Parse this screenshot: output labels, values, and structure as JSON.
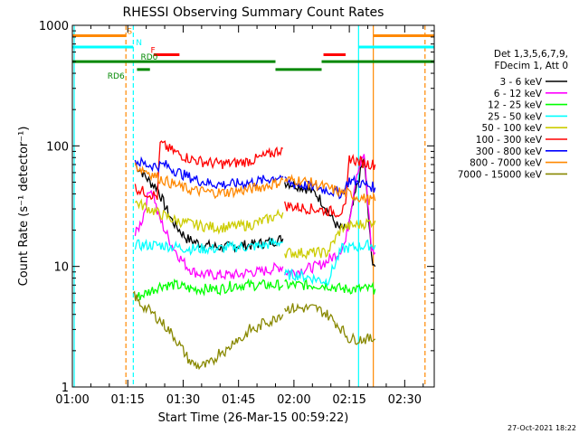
{
  "chart_data": {
    "type": "line",
    "title": "RHESSI Observing Summary Count Rates",
    "xlabel": "Start Time (26-Mar-15 00:59:22)",
    "ylabel": "Count Rate (s⁻¹ detector⁻¹)",
    "footer": "27-Oct-2021 18:22",
    "y_scale": "log",
    "ylim": [
      1,
      1000
    ],
    "xlim": [
      0,
      98
    ],
    "x_unit": "minutes after 01:00",
    "x_ticks": [
      {
        "value": 0,
        "label": "01:00"
      },
      {
        "value": 15,
        "label": "01:15"
      },
      {
        "value": 30,
        "label": "01:30"
      },
      {
        "value": 45,
        "label": "01:45"
      },
      {
        "value": 60,
        "label": "02:00"
      },
      {
        "value": 75,
        "label": "02:15"
      },
      {
        "value": 90,
        "label": "02:30"
      }
    ],
    "y_ticks": [
      {
        "value": 1,
        "label": "1"
      },
      {
        "value": 10,
        "label": "10"
      },
      {
        "value": 100,
        "label": "100"
      },
      {
        "value": 1000,
        "label": "1000"
      }
    ],
    "legend_header": [
      "Det 1,3,5,6,7,9,",
      "FDecim 1, Att 0"
    ],
    "legend_placement": "right",
    "series": [
      {
        "name": "3 - 6 keV",
        "color": "#000000",
        "segments": [
          {
            "x": [
              17,
              19,
              21,
              23,
              25,
              27,
              29,
              31,
              33,
              36,
              39,
              42,
              45,
              48,
              51,
              54,
              57
            ],
            "y": [
              70,
              60,
              50,
              45,
              32,
              24,
              20,
              17,
              16,
              15,
              14.5,
              14.5,
              15,
              15,
              15.5,
              16,
              17
            ]
          },
          {
            "x": [
              57.5,
              60,
              63,
              66,
              68,
              70,
              72,
              74,
              75,
              77,
              79,
              81,
              82
            ],
            "y": [
              50,
              48,
              45,
              40,
              33,
              26,
              21,
              20,
              23,
              45,
              80,
              12,
              10
            ]
          }
        ]
      },
      {
        "name": "6 - 12 keV",
        "color": "#ff00ff",
        "segments": [
          {
            "x": [
              17,
              19,
              21,
              22,
              23,
              25,
              27,
              29,
              31,
              33,
              36,
              39,
              42,
              45,
              48,
              51,
              54,
              57
            ],
            "y": [
              18,
              25,
              45,
              40,
              28,
              20,
              15,
              12,
              10,
              9,
              8.5,
              8.5,
              8.5,
              8.5,
              9,
              9,
              9.5,
              10
            ]
          },
          {
            "x": [
              57.5,
              60,
              63,
              66,
              69,
              72,
              74,
              75,
              77,
              79,
              81,
              82
            ],
            "y": [
              9,
              9,
              9.5,
              10,
              11,
              13,
              16,
              25,
              60,
              85,
              14,
              13
            ]
          }
        ]
      },
      {
        "name": "12 - 25 keV",
        "color": "#00ff00",
        "segments": [
          {
            "x": [
              17,
              20,
              24,
              28,
              32,
              36,
              40,
              44,
              48,
              52,
              56,
              57
            ],
            "y": [
              5.5,
              6,
              7,
              7,
              6.5,
              6.5,
              6.5,
              7,
              7,
              7,
              7,
              7
            ]
          },
          {
            "x": [
              57.5,
              61,
              65,
              69,
              73,
              77,
              80,
              82
            ],
            "y": [
              7,
              7,
              7,
              7,
              6.5,
              6.5,
              6.5,
              6.5
            ]
          }
        ]
      },
      {
        "name": "25 - 50 keV",
        "color": "#00ffff",
        "segments": [
          {
            "x": [
              17,
              20,
              24,
              28,
              32,
              36,
              40,
              44,
              48,
              52,
              56,
              57
            ],
            "y": [
              15,
              15,
              15,
              14.5,
              14,
              14,
              14,
              14.5,
              14.5,
              15,
              16,
              16
            ]
          },
          {
            "x": [
              57.5,
              61,
              65,
              69,
              73,
              77,
              80,
              82
            ],
            "y": [
              8.5,
              8.5,
              8,
              7.5,
              14,
              14.5,
              15,
              15
            ]
          }
        ]
      },
      {
        "name": "50 - 100 keV",
        "color": "#cccc00",
        "segments": [
          {
            "x": [
              17,
              20,
              24,
              28,
              32,
              36,
              40,
              44,
              48,
              52,
              56,
              57
            ],
            "y": [
              34,
              31,
              27,
              24,
              22.5,
              21.5,
              21,
              21.5,
              22,
              24,
              27,
              28
            ]
          },
          {
            "x": [
              57.5,
              61,
              65,
              69,
              73,
              77,
              80,
              82
            ],
            "y": [
              13,
              13,
              13,
              13,
              21,
              22,
              23,
              24
            ]
          }
        ]
      },
      {
        "name": "100 - 300 keV",
        "color": "#ff0000",
        "segments": [
          {
            "x": [
              17,
              19,
              21,
              23,
              23.8,
              26,
              29,
              32,
              35,
              38,
              41,
              44,
              47,
              50,
              53,
              56,
              57
            ],
            "y": [
              45,
              42,
              40,
              38,
              105,
              95,
              85,
              78,
              74,
              72,
              71,
              72,
              74,
              78,
              84,
              92,
              95
            ]
          },
          {
            "x": [
              57.5,
              61,
              65,
              69,
              72,
              74,
              75,
              77,
              79,
              82
            ],
            "y": [
              32,
              31,
              30,
              29,
              28,
              30,
              80,
              75,
              72,
              70
            ]
          }
        ]
      },
      {
        "name": "300 - 800 keV",
        "color": "#0000ff",
        "segments": [
          {
            "x": [
              17,
              20,
              23,
              25,
              28,
              31,
              34,
              37,
              40,
              43,
              46,
              49,
              52,
              55,
              57
            ],
            "y": [
              75,
              70,
              68,
              70,
              62,
              56,
              52,
              49,
              48,
              48,
              49,
              50,
              52,
              55,
              56
            ]
          },
          {
            "x": [
              57.5,
              61,
              65,
              69,
              73,
              75,
              77,
              80,
              82
            ],
            "y": [
              50,
              48,
              46,
              43,
              40,
              52,
              50,
              47,
              45
            ]
          }
        ]
      },
      {
        "name": "800 - 7000 keV",
        "color": "#ff8800",
        "segments": [
          {
            "x": [
              17,
              20,
              23,
              26,
              29,
              32,
              35,
              38,
              41,
              44,
              47,
              50,
              53,
              56,
              57
            ],
            "y": [
              68,
              62,
              55,
              50,
              46,
              43,
              42,
              41,
              41,
              42,
              43,
              45,
              47,
              50,
              52
            ]
          },
          {
            "x": [
              57.5,
              61,
              65,
              69,
              73,
              75,
              77,
              80,
              82
            ],
            "y": [
              52,
              52,
              49,
              45,
              41,
              40,
              38,
              36,
              35
            ]
          }
        ]
      },
      {
        "name": "7000 - 15000 keV",
        "color": "#888800",
        "segments": [
          {
            "x": [
              16.5,
              18,
              20,
              22,
              24,
              26,
              28,
              30,
              32,
              34,
              36,
              38,
              40,
              42,
              44,
              46,
              48,
              50,
              52,
              54,
              56,
              57
            ],
            "y": [
              6,
              5,
              4.5,
              4,
              3.5,
              3,
              2.5,
              2,
              1.6,
              1.5,
              1.5,
              1.6,
              2,
              2,
              2.5,
              2.5,
              3,
              3,
              3.5,
              3.5,
              4,
              4
            ]
          },
          {
            "x": [
              57.5,
              60,
              63,
              66,
              69,
              71,
              73,
              75,
              77,
              79,
              82
            ],
            "y": [
              4.5,
              4.5,
              4.5,
              4.5,
              4,
              3.5,
              3,
              2.5,
              2.5,
              2.5,
              2.5
            ]
          }
        ]
      }
    ],
    "flag_bars": [
      {
        "name": "SAA",
        "label": "S",
        "color": "#ff8800",
        "y": 820,
        "spans": [
          [
            0,
            14.5
          ],
          [
            81.5,
            98
          ]
        ]
      },
      {
        "name": "Night",
        "label": "N",
        "color": "#00ffff",
        "y": 660,
        "spans": [
          [
            0,
            16.5
          ],
          [
            77.5,
            98
          ]
        ]
      },
      {
        "name": "Flare",
        "label": "F",
        "color": "#ff0000",
        "y": 570,
        "spans": [
          [
            22,
            29
          ],
          [
            68,
            74
          ]
        ]
      },
      {
        "name": "Decimation RD0",
        "label": "RD0",
        "color": "#008800",
        "y": 500,
        "spans": [
          [
            0,
            55
          ],
          [
            67.5,
            98
          ]
        ]
      },
      {
        "name": "Decimation RD6",
        "label": "RD6",
        "color": "#008800",
        "y": 430,
        "spans": [
          [
            17.5,
            21
          ],
          [
            55,
            67.5
          ]
        ]
      }
    ],
    "vertical_lines": [
      {
        "x": 0.5,
        "color": "#00ffff",
        "style": "solid"
      },
      {
        "x": 14.5,
        "color": "#ff8800",
        "style": "dashed"
      },
      {
        "x": 16.5,
        "color": "#00ffff",
        "style": "dashed"
      },
      {
        "x": 77.5,
        "color": "#00ffff",
        "style": "solid"
      },
      {
        "x": 81.5,
        "color": "#ff8800",
        "style": "solid"
      },
      {
        "x": 95.5,
        "color": "#ff8800",
        "style": "dashed"
      }
    ]
  }
}
